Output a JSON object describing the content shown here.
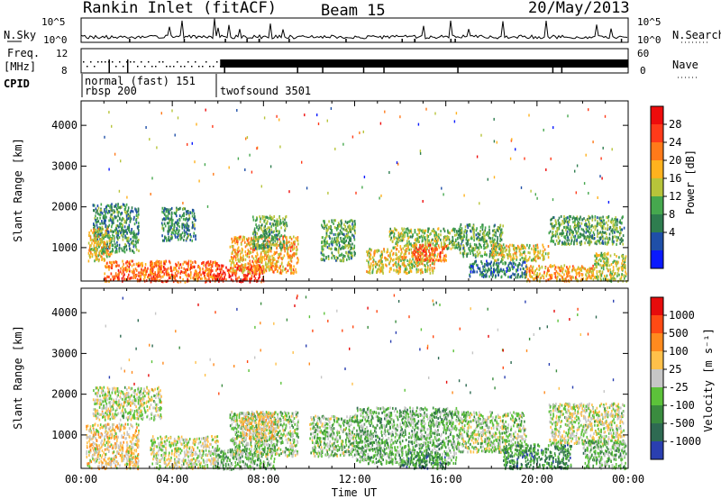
{
  "header": {
    "station": "Rankin Inlet (fitACF)",
    "beam": "Beam 15",
    "date": "20/May/2013"
  },
  "top_panels": {
    "nsky_label": "N.Sky",
    "nsearch_label": "N.Search",
    "nsky_ticks": [
      "10^5",
      "10^0"
    ],
    "freq_label_1": "Freq.",
    "freq_label_2": "[MHz]",
    "freq_ticks": [
      "12",
      "8"
    ],
    "nave_label": "Nave",
    "nave_ticks": [
      "60",
      "0"
    ],
    "cpid_label": "CPID",
    "cpid_entries": [
      "normal (fast) 151",
      "rbsp 200",
      "twofsound 3501"
    ]
  },
  "power_panel": {
    "ylabel": "Slant Range [km]",
    "colorbar_label": "Power [dB]",
    "colorbar_ticks": [
      "28",
      "24",
      "20",
      "16",
      "12",
      "8",
      "4"
    ],
    "colors": [
      "#0a1aff",
      "#1f4fa8",
      "#2e7d4f",
      "#46a84e",
      "#b7c43a",
      "#ffb21e",
      "#ff7a1a",
      "#ff3a1a",
      "#ee0c0c"
    ]
  },
  "velocity_panel": {
    "ylabel": "Slant Range [km]",
    "colorbar_label": "Velocity [m s⁻¹]",
    "colorbar_ticks": [
      "1000",
      "500",
      "100",
      "25",
      "-25",
      "-100",
      "-500",
      "-1000"
    ],
    "colors": [
      "#2a3fb0",
      "#2e6a52",
      "#3a8c3f",
      "#5cc23a",
      "#c6c6c6",
      "#ffc04a",
      "#ff8a1e",
      "#ff4a14",
      "#e60c0c"
    ]
  },
  "chart_data": {
    "type": "heatmap",
    "title": "Rankin Inlet (fitACF)",
    "subtitle": "Beam 15",
    "date": "20/May/2013",
    "xlabel": "Time UT",
    "ylabel": "Slant Range [km]",
    "x_ticks": [
      "00:00",
      "04:00",
      "08:00",
      "12:00",
      "16:00",
      "20:00",
      "00:00"
    ],
    "xlim_hours": [
      0,
      24
    ],
    "y_ticks": [
      "1000",
      "2000",
      "3000",
      "4000"
    ],
    "ylim_km": [
      180,
      4600
    ],
    "grid": false,
    "panels": [
      {
        "name": "Power",
        "units": "dB",
        "colorbar_ticks": [
          4,
          8,
          12,
          16,
          20,
          24,
          28
        ],
        "clim": [
          0,
          32
        ],
        "regions": [
          {
            "t": [
              1.0,
              3.5
            ],
            "r": [
              200,
              700
            ],
            "level": 24
          },
          {
            "t": [
              3.0,
              6.0
            ],
            "r": [
              180,
              700
            ],
            "level": 24
          },
          {
            "t": [
              5.8,
              8.0
            ],
            "r": [
              180,
              600
            ],
            "level": 28
          },
          {
            "t": [
              6.5,
              9.5
            ],
            "r": [
              400,
              1300
            ],
            "level": 20
          },
          {
            "t": [
              7.5,
              9.0
            ],
            "r": [
              1000,
              1800
            ],
            "level": 12
          },
          {
            "t": [
              0.5,
              2.5
            ],
            "r": [
              900,
              2100
            ],
            "level": 10
          },
          {
            "t": [
              0.3,
              1.3
            ],
            "r": [
              700,
              1500
            ],
            "level": 18
          },
          {
            "t": [
              3.5,
              5.0
            ],
            "r": [
              1200,
              2000
            ],
            "level": 10
          },
          {
            "t": [
              10.5,
              12.0
            ],
            "r": [
              700,
              1700
            ],
            "level": 12
          },
          {
            "t": [
              12.5,
              15.5
            ],
            "r": [
              400,
              1000
            ],
            "level": 18
          },
          {
            "t": [
              13.5,
              16.5
            ],
            "r": [
              1000,
              1500
            ],
            "level": 14
          },
          {
            "t": [
              14.5,
              16.0
            ],
            "r": [
              700,
              1100
            ],
            "level": 24
          },
          {
            "t": [
              16.5,
              18.5
            ],
            "r": [
              800,
              1600
            ],
            "level": 12
          },
          {
            "t": [
              18.0,
              20.5
            ],
            "r": [
              700,
              1100
            ],
            "level": 18
          },
          {
            "t": [
              19.5,
              22.5
            ],
            "r": [
              200,
              600
            ],
            "level": 20
          },
          {
            "t": [
              20.5,
              23.8
            ],
            "r": [
              1100,
              1800
            ],
            "level": 12
          },
          {
            "t": [
              22.5,
              23.9
            ],
            "r": [
              200,
              900
            ],
            "level": 16
          },
          {
            "t": [
              17.0,
              19.5
            ],
            "r": [
              300,
              700
            ],
            "level": 8
          }
        ]
      },
      {
        "name": "Velocity",
        "units": "m s-1",
        "colorbar_ticks": [
          -1000,
          -500,
          -100,
          -25,
          25,
          100,
          500,
          1000
        ],
        "clim": [
          -1200,
          1200
        ],
        "regions": [
          {
            "t": [
              0.2,
              2.5
            ],
            "r": [
              200,
              1300
            ],
            "level": 150
          },
          {
            "t": [
              0.5,
              3.5
            ],
            "r": [
              1400,
              2200
            ],
            "level": 0
          },
          {
            "t": [
              3.0,
              6.0
            ],
            "r": [
              200,
              1000
            ],
            "level": 0
          },
          {
            "t": [
              5.8,
              8.5
            ],
            "r": [
              180,
              700
            ],
            "level": -300
          },
          {
            "t": [
              6.5,
              9.5
            ],
            "r": [
              500,
              1600
            ],
            "level": -150
          },
          {
            "t": [
              7.0,
              8.5
            ],
            "r": [
              900,
              1600
            ],
            "level": 200
          },
          {
            "t": [
              10.0,
              12.0
            ],
            "r": [
              500,
              1500
            ],
            "level": -200
          },
          {
            "t": [
              12.0,
              16.5
            ],
            "r": [
              300,
              1700
            ],
            "level": -300
          },
          {
            "t": [
              14.0,
              16.0
            ],
            "r": [
              200,
              600
            ],
            "level": -600
          },
          {
            "t": [
              16.5,
              19.5
            ],
            "r": [
              600,
              1600
            ],
            "level": -150
          },
          {
            "t": [
              18.5,
              21.5
            ],
            "r": [
              200,
              800
            ],
            "level": -600
          },
          {
            "t": [
              20.5,
              23.8
            ],
            "r": [
              800,
              1800
            ],
            "level": 0
          },
          {
            "t": [
              22.0,
              23.9
            ],
            "r": [
              200,
              900
            ],
            "level": -300
          }
        ]
      }
    ],
    "cpid_segments": [
      {
        "label": "normal (fast) 151",
        "start_hour": 0,
        "end_hour": 6.1
      },
      {
        "label": "rbsp 200",
        "start_hour": 0,
        "end_hour": 6.1
      },
      {
        "label": "twofsound 3501",
        "start_hour": 6.1,
        "end_hour": 24
      }
    ]
  }
}
